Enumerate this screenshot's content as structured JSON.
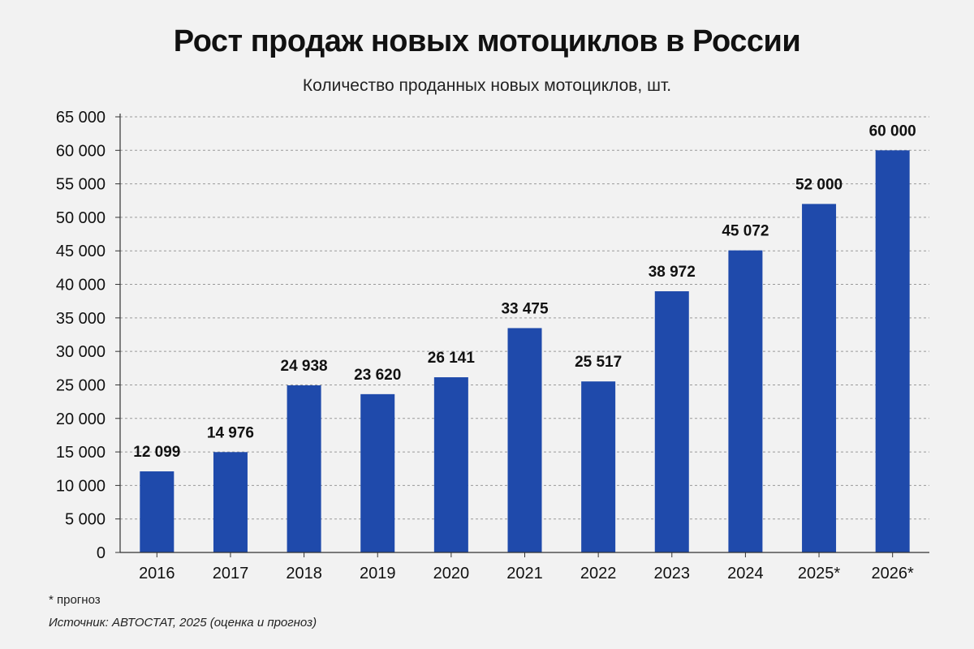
{
  "title": "Рост продаж новых мотоциклов в России",
  "subtitle": "Количество проданных новых мотоциклов, шт.",
  "footnote": "* прогноз",
  "source": "Источник: АВТОСТАТ, 2025 (оценка и прогноз)",
  "colors": {
    "bar": "#1f4aab",
    "grid": "#9a9a9a",
    "axis": "#333333",
    "text": "#111111"
  },
  "chart_data": {
    "type": "bar",
    "title": "Рост продаж новых мотоциклов в России",
    "subtitle": "Количество проданных новых мотоциклов, шт.",
    "categories": [
      "2016",
      "2017",
      "2018",
      "2019",
      "2020",
      "2021",
      "2022",
      "2023",
      "2024",
      "2025*",
      "2026*"
    ],
    "values": [
      12099,
      14976,
      24938,
      23620,
      26141,
      33475,
      25517,
      38972,
      45072,
      52000,
      60000
    ],
    "value_labels": [
      "12 099",
      "14 976",
      "24 938",
      "23 620",
      "26 141",
      "33 475",
      "25 517",
      "38 972",
      "45 072",
      "52 000",
      "60 000"
    ],
    "ylim": [
      0,
      65000
    ],
    "yticks": [
      0,
      5000,
      10000,
      15000,
      20000,
      25000,
      30000,
      35000,
      40000,
      45000,
      50000,
      55000,
      60000,
      65000
    ],
    "ytick_labels": [
      "0",
      "5 000",
      "10 000",
      "15 000",
      "20 000",
      "25 000",
      "30 000",
      "35 000",
      "40 000",
      "45 000",
      "50 000",
      "55 000",
      "60 000",
      "65 000"
    ],
    "xlabel": "",
    "ylabel": "",
    "grid": true,
    "legend": "none"
  }
}
